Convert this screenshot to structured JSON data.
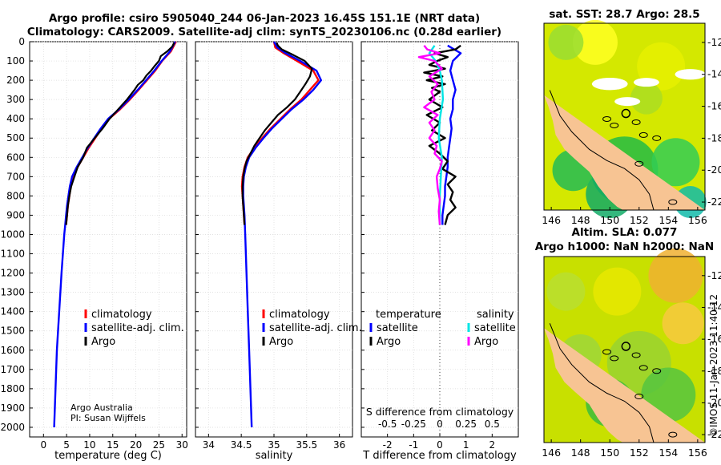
{
  "header": {
    "line1": "Argo profile: csiro 5905040_244 06-Jan-2023 16.45S 151.1E (NRT data)",
    "line2": "Climatology: CARS2009. Satellite-adj clim: synTS_20230106.nc (0.28d earlier)"
  },
  "credit": {
    "line1": "Argo Australia",
    "line2": "PI: Susan Wijffels",
    "watermark": "©IMOS 11-Jan-2023 11:40:12"
  },
  "colors": {
    "climatology": "#ff0000",
    "satellite_adj": "#0000ff",
    "argo": "#000000",
    "sal_satellite": "#00e5e5",
    "sal_argo": "#ff00ff",
    "land": "#f7c493",
    "sea_green": "#22bb44",
    "sea_yellow": "#e8e800",
    "sea_orange": "#f0a020"
  },
  "chart_data": [
    {
      "type": "line",
      "name": "temperature-profile",
      "xlabel": "temperature (deg C)",
      "ylabel": "",
      "xlim": [
        -3,
        31
      ],
      "ylim": [
        2050,
        0
      ],
      "xticks": [
        0,
        5,
        10,
        15,
        20,
        25,
        30
      ],
      "yticks": [
        0,
        100,
        200,
        300,
        400,
        500,
        600,
        700,
        800,
        900,
        1000,
        1100,
        1200,
        1300,
        1400,
        1500,
        1600,
        1700,
        1800,
        1900,
        2000
      ],
      "legend": [
        "climatology",
        "satellite-adj. clim.",
        "Argo"
      ],
      "series": [
        {
          "name": "climatology",
          "depth": [
            0,
            50,
            100,
            150,
            200,
            250,
            300,
            350,
            400,
            450,
            500,
            550,
            600,
            650,
            700,
            750,
            800,
            850,
            900,
            950
          ],
          "values": [
            28.7,
            27.6,
            25.7,
            24.2,
            22.4,
            20.6,
            18.7,
            16.6,
            14.2,
            12.6,
            11.2,
            9.8,
            8.6,
            7.4,
            6.4,
            5.9,
            5.6,
            5.3,
            5.1,
            4.9
          ]
        },
        {
          "name": "satellite-adj. clim.",
          "depth": [
            0,
            50,
            100,
            150,
            200,
            250,
            300,
            350,
            400,
            450,
            500,
            550,
            600,
            650,
            700,
            750,
            800,
            850,
            900,
            950,
            1000,
            1200,
            1400,
            1600,
            1800,
            2000
          ],
          "values": [
            28.5,
            27.4,
            25.6,
            24.0,
            22.2,
            20.4,
            18.5,
            16.4,
            14.0,
            12.4,
            11.0,
            9.6,
            8.4,
            7.2,
            6.2,
            5.7,
            5.4,
            5.1,
            4.9,
            4.7,
            4.5,
            3.9,
            3.4,
            2.9,
            2.6,
            2.3
          ]
        },
        {
          "name": "Argo",
          "depth": [
            5,
            25,
            50,
            75,
            100,
            125,
            150,
            175,
            200,
            225,
            250,
            300,
            350,
            400,
            450,
            500,
            550,
            600,
            650,
            700,
            750,
            800,
            850,
            900,
            950
          ],
          "values": [
            28.3,
            27.9,
            26.8,
            25.4,
            25.0,
            24.1,
            23.3,
            22.3,
            21.6,
            20.4,
            19.7,
            18.1,
            16.2,
            14.3,
            12.8,
            11.1,
            9.4,
            8.6,
            7.4,
            6.7,
            6.0,
            5.6,
            5.3,
            5.1,
            4.9
          ]
        }
      ]
    },
    {
      "type": "line",
      "name": "salinity-profile",
      "xlabel": "salinity",
      "xlim": [
        33.8,
        36.2
      ],
      "ylim": [
        2050,
        0
      ],
      "xticks": [
        34,
        34.5,
        35,
        35.5,
        36
      ],
      "legend": [
        "climatology",
        "satellite-adj. clim.",
        "Argo"
      ],
      "series": [
        {
          "name": "climatology",
          "depth": [
            0,
            30,
            60,
            100,
            150,
            200,
            250,
            300,
            350,
            400,
            450,
            500,
            550,
            600,
            650,
            700,
            750,
            800,
            850,
            900,
            950
          ],
          "values": [
            35.0,
            35.02,
            35.15,
            35.35,
            35.6,
            35.68,
            35.55,
            35.42,
            35.25,
            35.1,
            34.95,
            34.82,
            34.7,
            34.6,
            34.55,
            34.52,
            34.51,
            34.52,
            34.53,
            34.54,
            34.55
          ]
        },
        {
          "name": "satellite-adj. clim.",
          "depth": [
            0,
            30,
            60,
            100,
            150,
            200,
            250,
            300,
            350,
            400,
            450,
            500,
            550,
            600,
            650,
            700,
            750,
            800,
            900,
            1000,
            1200,
            1400,
            1600,
            1800,
            2000
          ],
          "values": [
            35.0,
            35.05,
            35.18,
            35.4,
            35.65,
            35.72,
            35.6,
            35.45,
            35.27,
            35.12,
            34.97,
            34.84,
            34.72,
            34.62,
            34.57,
            34.54,
            34.53,
            34.53,
            34.55,
            34.56,
            34.58,
            34.6,
            34.62,
            34.64,
            34.66
          ]
        },
        {
          "name": "Argo",
          "depth": [
            5,
            20,
            40,
            70,
            100,
            140,
            180,
            220,
            260,
            300,
            340,
            380,
            420,
            460,
            500,
            540,
            580,
            620,
            660,
            700,
            750,
            800,
            850,
            900,
            950
          ],
          "values": [
            35.04,
            35.06,
            35.12,
            35.3,
            35.47,
            35.58,
            35.55,
            35.48,
            35.4,
            35.32,
            35.2,
            35.06,
            34.96,
            34.86,
            34.78,
            34.7,
            34.64,
            34.58,
            34.55,
            34.53,
            34.52,
            34.52,
            34.53,
            34.54,
            34.55
          ]
        }
      ]
    },
    {
      "type": "line",
      "name": "difference-profile",
      "xlabel": "T difference from climatology",
      "x2label": "S difference from climatology",
      "xlim": [
        -3,
        3
      ],
      "ylim": [
        2050,
        0
      ],
      "xticks": [
        -2,
        -1,
        0,
        1,
        2
      ],
      "x2ticks": [
        -0.5,
        -0.25,
        0,
        0.25,
        0.5
      ],
      "legend_temperature": "temperature",
      "legend_salinity": "salinity",
      "legend_entries": [
        "satellite",
        "Argo",
        "satellite",
        "Argo"
      ],
      "series": [
        {
          "name": "T satellite",
          "depth": [
            20,
            60,
            100,
            150,
            200,
            250,
            300,
            350,
            400,
            450,
            500,
            550,
            600,
            650,
            700,
            750,
            800,
            850,
            900,
            950
          ],
          "values": [
            0.3,
            0.8,
            0.5,
            0.4,
            0.5,
            0.6,
            0.5,
            0.5,
            0.4,
            0.45,
            0.4,
            0.35,
            0.3,
            0.3,
            0.25,
            0.2,
            0.2,
            0.15,
            0.1,
            0.1
          ]
        },
        {
          "name": "T Argo",
          "depth": [
            20,
            40,
            60,
            80,
            100,
            120,
            140,
            160,
            180,
            200,
            220,
            240,
            260,
            300,
            340,
            380,
            420,
            460,
            500,
            540,
            580,
            620,
            660,
            700,
            740,
            780,
            820,
            860,
            900,
            950
          ],
          "values": [
            0.8,
            0.6,
            -0.2,
            0.3,
            -0.1,
            -0.4,
            0.2,
            -0.6,
            0.1,
            -0.5,
            0.2,
            -0.3,
            0.0,
            -0.4,
            0.1,
            -0.5,
            0.0,
            -0.3,
            0.2,
            -0.4,
            0.0,
            0.3,
            0.1,
            0.6,
            0.3,
            0.5,
            0.4,
            0.6,
            0.3,
            0.2
          ]
        },
        {
          "name": "S satellite",
          "depth": [
            20,
            60,
            100,
            150,
            200,
            300,
            400,
            500,
            600,
            700,
            800,
            900,
            950
          ],
          "values": [
            -0.05,
            -0.1,
            -0.04,
            0.0,
            0.02,
            0.03,
            0.0,
            -0.01,
            0.02,
            0.01,
            0.0,
            0.0,
            0.0
          ]
        },
        {
          "name": "S Argo",
          "depth": [
            20,
            40,
            60,
            80,
            100,
            140,
            180,
            220,
            260,
            300,
            340,
            380,
            420,
            460,
            500,
            540,
            580,
            620,
            660,
            700,
            760,
            820,
            880,
            950
          ],
          "values": [
            -0.15,
            -0.12,
            0.0,
            -0.2,
            -0.05,
            0.02,
            -0.1,
            -0.02,
            -0.08,
            -0.05,
            -0.15,
            -0.02,
            -0.1,
            -0.05,
            -0.1,
            -0.03,
            -0.05,
            0.02,
            0.0,
            -0.03,
            -0.02,
            0.0,
            -0.01,
            0.0
          ]
        }
      ]
    },
    {
      "type": "heatmap",
      "name": "sat-sst-map",
      "title": "sat. SST: 28.7 Argo: 28.5",
      "xlim": [
        145.5,
        156.5
      ],
      "ylim": [
        -22.5,
        -10.8
      ],
      "xticks": [
        146,
        148,
        150,
        152,
        154,
        156
      ],
      "yticks": [
        -12,
        -14,
        -16,
        -18,
        -20,
        -22
      ],
      "argo_position": [
        151.1,
        -16.45
      ]
    },
    {
      "type": "heatmap",
      "name": "altimetry-sla-map",
      "title1": "Altim. SLA: 0.077",
      "title2": "Argo h1000: NaN h2000: NaN",
      "xlim": [
        145.5,
        156.5
      ],
      "ylim": [
        -22.5,
        -10.8
      ],
      "xticks": [
        146,
        148,
        150,
        152,
        154,
        156
      ],
      "yticks": [
        -12,
        -14,
        -16,
        -18,
        -20,
        -22
      ],
      "argo_position": [
        151.1,
        -16.45
      ]
    }
  ]
}
